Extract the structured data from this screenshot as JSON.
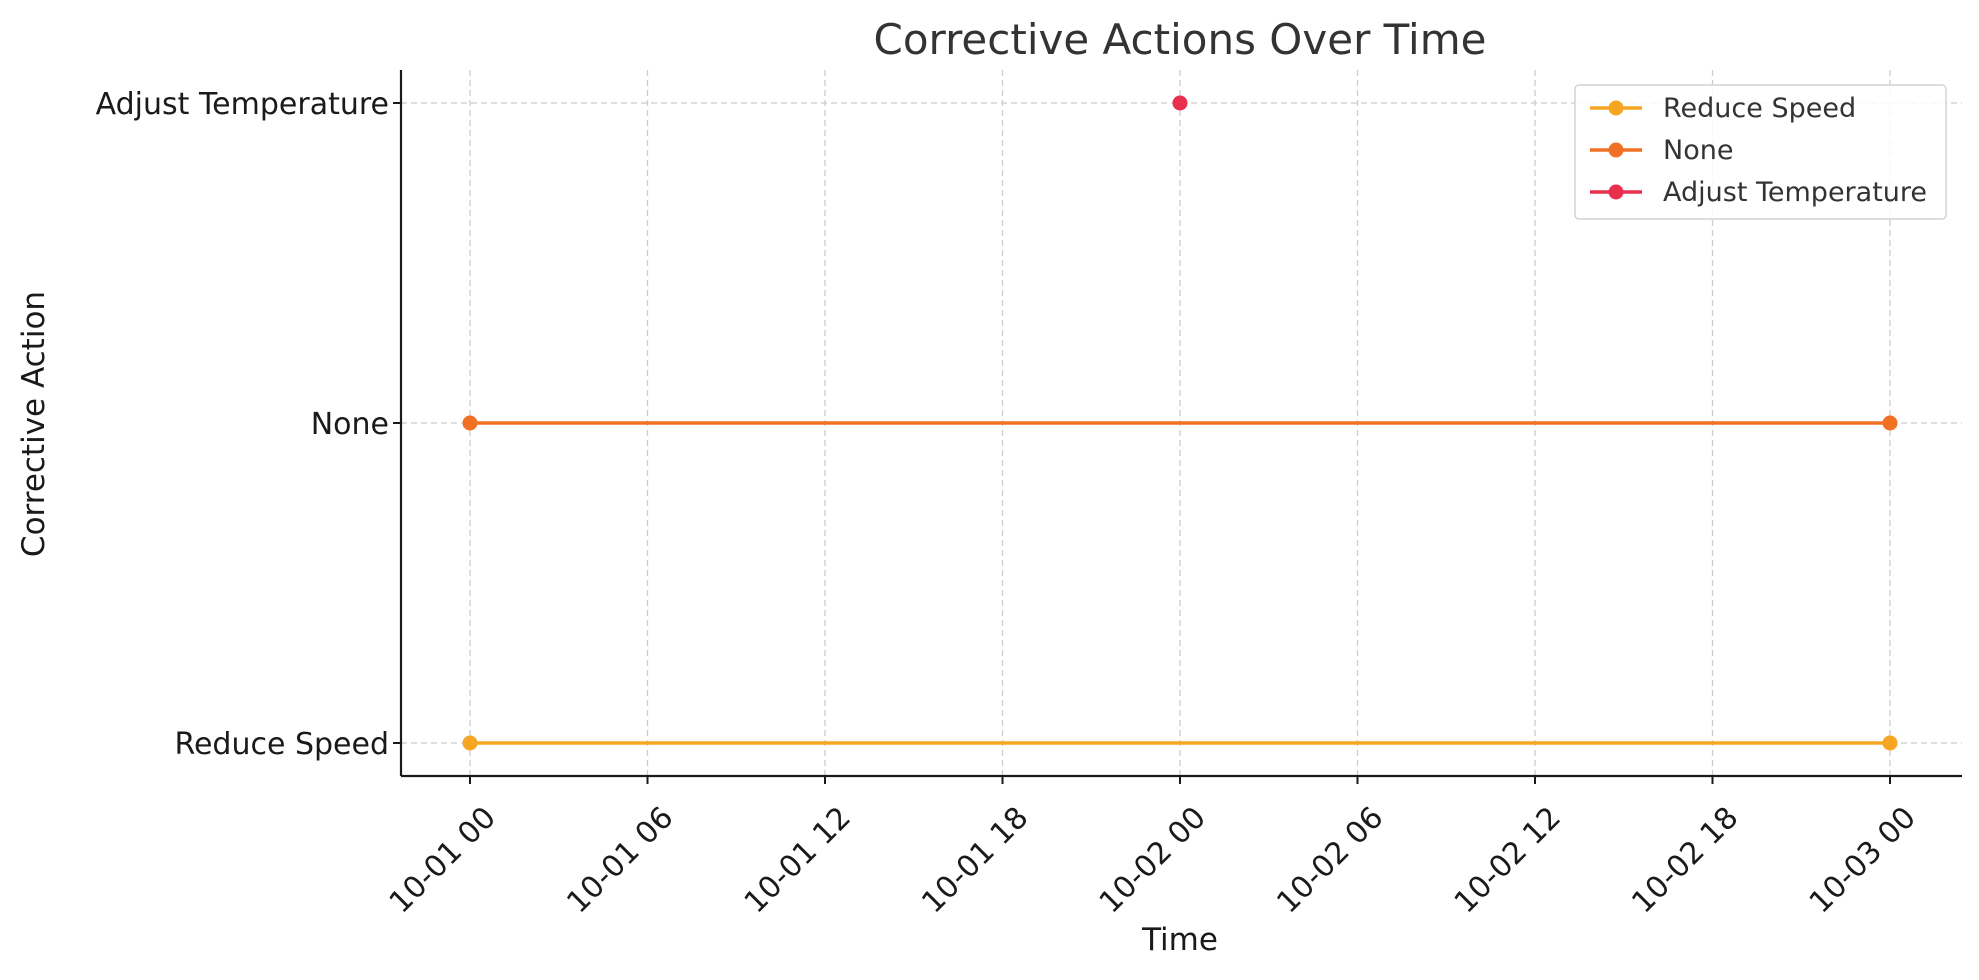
{
  "chart_data": {
    "type": "line",
    "title": "Corrective Actions Over Time",
    "xlabel": "Time",
    "ylabel": "Corrective Action",
    "x_axis_type": "datetime",
    "x_ticks": [
      "10-01 00",
      "10-01 06",
      "10-01 12",
      "10-01 18",
      "10-02 00",
      "10-02 06",
      "10-02 12",
      "10-02 18",
      "10-03 00"
    ],
    "y_categories": [
      "Reduce Speed",
      "None",
      "Adjust Temperature"
    ],
    "grid": true,
    "legend_position": "top-right",
    "series": [
      {
        "name": "Reduce Speed",
        "color": "#F5A623",
        "points": [
          {
            "x": "10-01 00",
            "y": "Reduce Speed"
          },
          {
            "x": "10-03 00",
            "y": "Reduce Speed"
          }
        ]
      },
      {
        "name": "None",
        "color": "#F07024",
        "points": [
          {
            "x": "10-01 00",
            "y": "None"
          },
          {
            "x": "10-03 00",
            "y": "None"
          }
        ]
      },
      {
        "name": "Adjust Temperature",
        "color": "#E8304E",
        "points": [
          {
            "x": "10-02 00",
            "y": "Adjust Temperature"
          }
        ]
      }
    ]
  }
}
